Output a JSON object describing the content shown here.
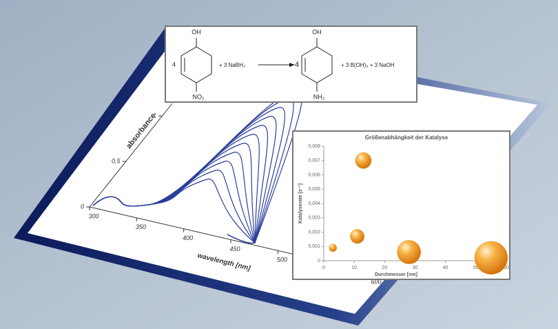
{
  "reaction": {
    "reactant_coef": "4",
    "reactant_top": "OH",
    "reactant_bottom": "NO₂",
    "reagent": "+  3 NaBH₄",
    "product_coef": "4",
    "product_top": "OH",
    "product_bottom": "NH₂",
    "byproducts": "+  3 B(OH)₃ +  3 NaOH"
  },
  "spectrum": {
    "x_label": "wavelength [nm]",
    "y_label": "absorbance",
    "xticks": [
      300,
      350,
      400,
      450,
      500,
      600
    ],
    "yticks": [
      0,
      {
        "value": 0.5,
        "label": "0,5"
      },
      1
    ]
  },
  "chart_data": {
    "type": "scatter",
    "title": "Größenabhängkeit der Katalyse",
    "x_label": "Durchmesser [nm]",
    "y_label": "Katalyserate [s⁻¹]",
    "x": [
      3,
      11,
      13,
      28,
      55
    ],
    "values": [
      0.0009,
      0.0017,
      0.007,
      0.0006,
      0.0002
    ],
    "sizes": [
      3,
      10,
      13,
      28,
      55
    ],
    "color": "#f29a1e",
    "xlim": [
      0,
      60
    ],
    "ylim": [
      0,
      0.008
    ],
    "xticks": [
      0,
      10,
      20,
      30,
      40,
      50,
      60
    ],
    "yticks": [
      0,
      {
        "value": 0.001,
        "label": "0,001"
      },
      {
        "value": 0.002,
        "label": "0,002"
      },
      {
        "value": 0.003,
        "label": "0,003"
      },
      {
        "value": 0.004,
        "label": "0,004"
      },
      {
        "value": 0.005,
        "label": "0,005"
      },
      {
        "value": 0.006,
        "label": "0,006"
      },
      {
        "value": 0.007,
        "label": "0,007"
      },
      {
        "value": 0.008,
        "label": "0,008"
      }
    ]
  }
}
